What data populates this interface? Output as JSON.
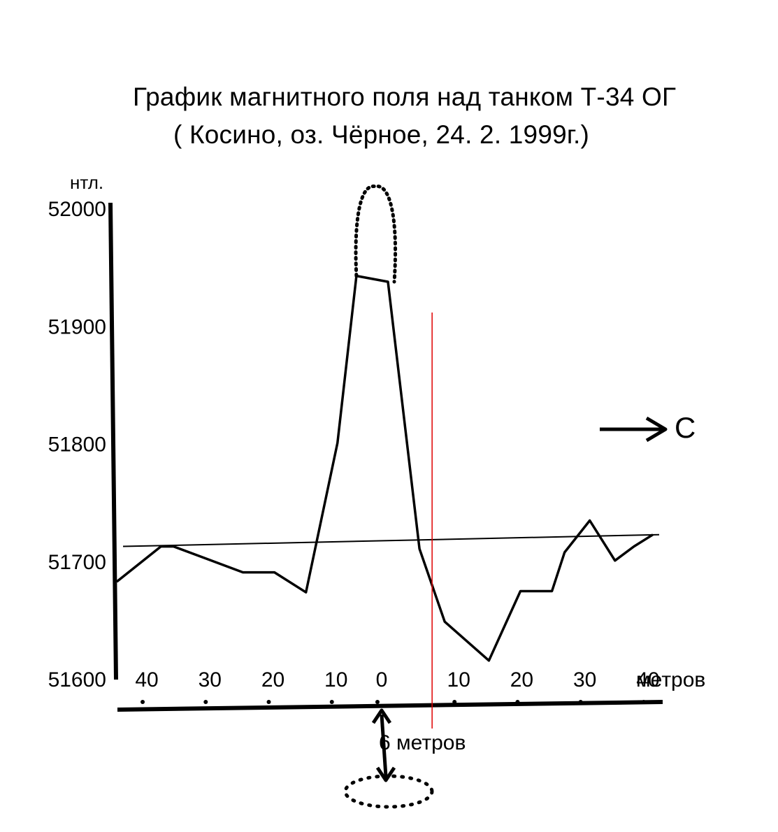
{
  "chart_data": {
    "type": "line",
    "title": "График магнитного поля над танком Т-34 ОГ",
    "subtitle": "( Косино, оз. Чёрное, 24. 2. 1999г.)",
    "ylabel": "нтл.",
    "xunit": "метров",
    "ylim": [
      51600,
      52000
    ],
    "y_ticks": [
      "52000",
      "51900",
      "51800",
      "51700",
      "51600"
    ],
    "xlim": [
      -42,
      44
    ],
    "x_ticks": [
      {
        "value": -40,
        "label": "40"
      },
      {
        "value": -30,
        "label": "30"
      },
      {
        "value": -20,
        "label": "20"
      },
      {
        "value": -10,
        "label": "10"
      },
      {
        "value": 0,
        "label": "0"
      },
      {
        "value": 10,
        "label": "10"
      },
      {
        "value": 20,
        "label": "20"
      },
      {
        "value": 30,
        "label": "30"
      },
      {
        "value": 40,
        "label": "40"
      }
    ],
    "series": [
      {
        "x": [
          -42,
          -35,
          -33,
          -28,
          -22,
          -17,
          -12,
          -7,
          -4,
          1,
          6,
          10,
          17,
          22,
          27,
          29,
          33,
          37,
          40,
          43
        ],
        "y": [
          51682,
          51712,
          51712,
          51702,
          51690,
          51690,
          51673,
          51800,
          51942,
          51937,
          51710,
          51648,
          51615,
          51674,
          51674,
          51707,
          51734,
          51700,
          51712,
          51722
        ]
      }
    ],
    "baseline": {
      "x": [
        -41,
        44
      ],
      "y": [
        51712,
        51722
      ]
    },
    "peak_extrapolation": {
      "x": [
        -4,
        -2,
        0,
        2
      ],
      "y": [
        51942,
        52015,
        52015,
        51937
      ]
    },
    "red_marker_x": 8,
    "annotations": {
      "north_arrow_label": "С",
      "depth_label": "6 метров"
    },
    "colors": {
      "line": "#000000",
      "marker": "#e00000"
    }
  }
}
